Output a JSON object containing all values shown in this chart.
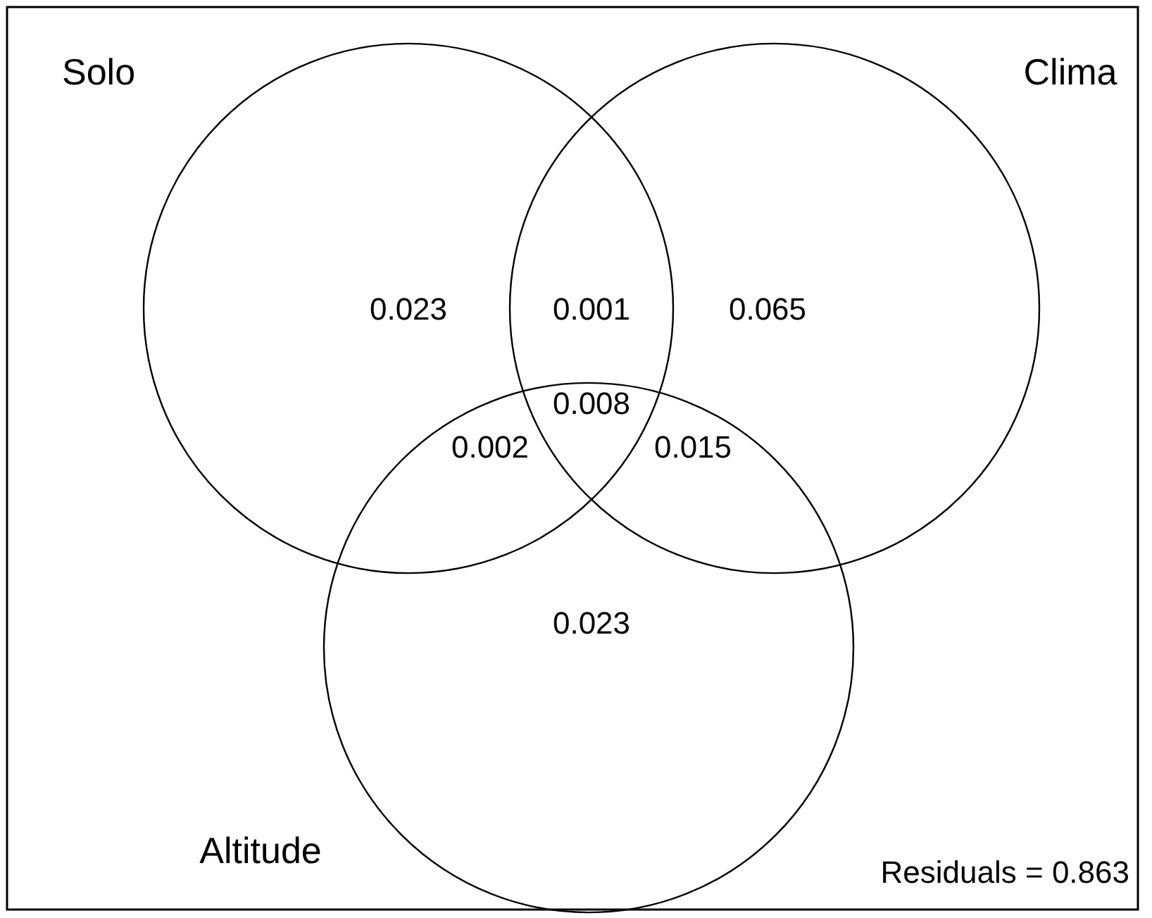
{
  "chart_data": {
    "type": "other",
    "categories": [
      null,
      null,
      null,
      null,
      null,
      null,
      null
    ],
    "values": [
      0.023,
      0.001,
      0.065,
      0.008,
      0.002,
      0.015,
      0.023
    ],
    "data_labels": true,
    "annotations": [
      "Solo",
      "Clima",
      "Altitude",
      "Residuals = 0.863"
    ]
  }
}
